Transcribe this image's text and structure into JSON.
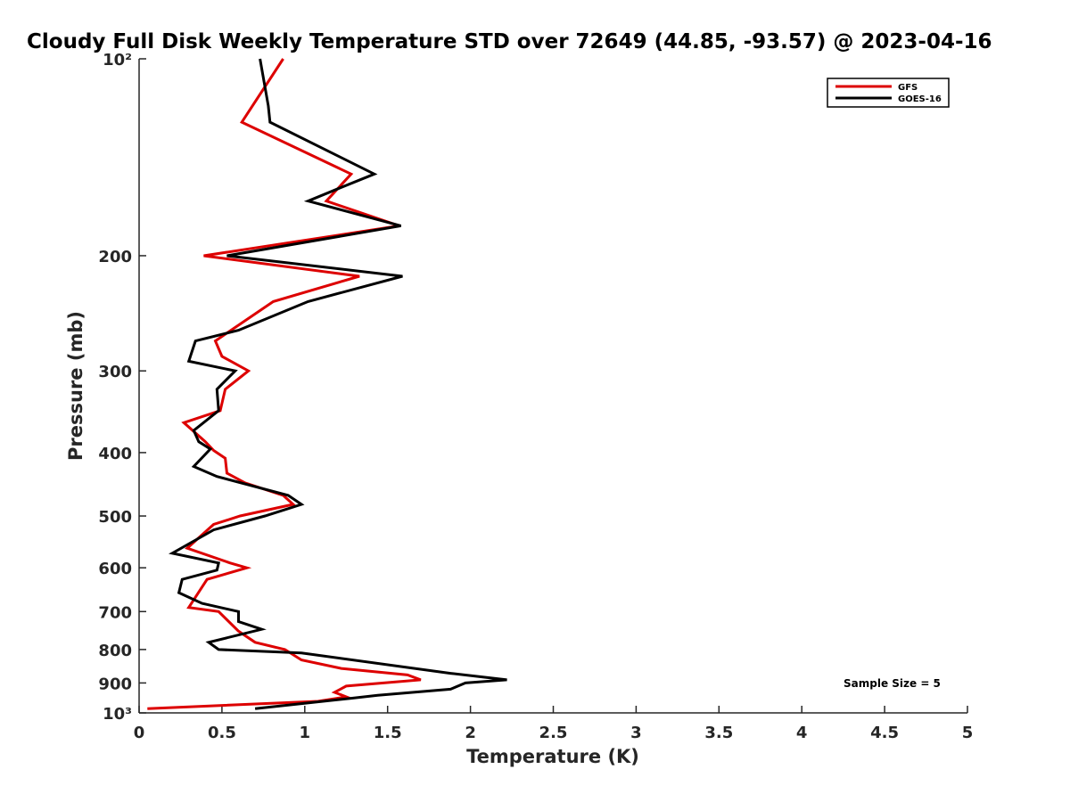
{
  "chart_data": {
    "type": "line",
    "title": "Cloudy Full Disk Weekly Temperature STD over 72649 (44.85, -93.57) @ 2023-04-16",
    "xlabel": "Temperature (K)",
    "ylabel": "Pressure (mb)",
    "xlim": [
      0,
      5
    ],
    "ylim": [
      100,
      1000
    ],
    "y_scale": "log",
    "y_reversed": true,
    "x_ticks": [
      0,
      0.5,
      1,
      1.5,
      2,
      2.5,
      3,
      3.5,
      4,
      4.5,
      5
    ],
    "x_tick_labels": [
      "0",
      "0.5",
      "1",
      "1.5",
      "2",
      "2.5",
      "3",
      "3.5",
      "4",
      "4.5",
      "5"
    ],
    "y_ticks": [
      100,
      200,
      300,
      400,
      500,
      600,
      700,
      800,
      900,
      1000
    ],
    "y_tick_labels": [
      "10²",
      "200",
      "300",
      "400",
      "500",
      "600",
      "700",
      "800",
      "900",
      "10³"
    ],
    "grid": false,
    "legend_position": "top-right",
    "annotation": "Sample Size = 5",
    "series": [
      {
        "name": "GFS",
        "color": "#dd0000",
        "points": [
          {
            "x": 0.87,
            "y": 100
          },
          {
            "x": 0.62,
            "y": 125
          },
          {
            "x": 1.28,
            "y": 150
          },
          {
            "x": 1.13,
            "y": 165
          },
          {
            "x": 1.57,
            "y": 180
          },
          {
            "x": 0.39,
            "y": 200
          },
          {
            "x": 1.33,
            "y": 215
          },
          {
            "x": 0.81,
            "y": 235
          },
          {
            "x": 0.46,
            "y": 270
          },
          {
            "x": 0.5,
            "y": 285
          },
          {
            "x": 0.66,
            "y": 300
          },
          {
            "x": 0.52,
            "y": 320
          },
          {
            "x": 0.49,
            "y": 345
          },
          {
            "x": 0.27,
            "y": 360
          },
          {
            "x": 0.4,
            "y": 385
          },
          {
            "x": 0.45,
            "y": 397
          },
          {
            "x": 0.52,
            "y": 408
          },
          {
            "x": 0.53,
            "y": 430
          },
          {
            "x": 0.64,
            "y": 445
          },
          {
            "x": 0.87,
            "y": 465
          },
          {
            "x": 0.93,
            "y": 480
          },
          {
            "x": 0.61,
            "y": 500
          },
          {
            "x": 0.45,
            "y": 515
          },
          {
            "x": 0.29,
            "y": 560
          },
          {
            "x": 0.55,
            "y": 590
          },
          {
            "x": 0.65,
            "y": 600
          },
          {
            "x": 0.41,
            "y": 625
          },
          {
            "x": 0.3,
            "y": 690
          },
          {
            "x": 0.48,
            "y": 700
          },
          {
            "x": 0.6,
            "y": 750
          },
          {
            "x": 0.7,
            "y": 780
          },
          {
            "x": 0.88,
            "y": 800
          },
          {
            "x": 0.98,
            "y": 830
          },
          {
            "x": 1.22,
            "y": 855
          },
          {
            "x": 1.62,
            "y": 875
          },
          {
            "x": 1.7,
            "y": 890
          },
          {
            "x": 1.25,
            "y": 910
          },
          {
            "x": 1.18,
            "y": 930
          },
          {
            "x": 1.25,
            "y": 945
          },
          {
            "x": 1.08,
            "y": 960
          },
          {
            "x": 0.05,
            "y": 985
          }
        ]
      },
      {
        "name": "GOES-16",
        "color": "#000000",
        "points": [
          {
            "x": 0.73,
            "y": 100
          },
          {
            "x": 0.78,
            "y": 118
          },
          {
            "x": 0.79,
            "y": 125
          },
          {
            "x": 1.42,
            "y": 150
          },
          {
            "x": 1.2,
            "y": 158
          },
          {
            "x": 1.02,
            "y": 165
          },
          {
            "x": 1.58,
            "y": 180
          },
          {
            "x": 0.53,
            "y": 200
          },
          {
            "x": 1.59,
            "y": 215
          },
          {
            "x": 1.02,
            "y": 235
          },
          {
            "x": 0.6,
            "y": 260
          },
          {
            "x": 0.34,
            "y": 270
          },
          {
            "x": 0.3,
            "y": 290
          },
          {
            "x": 0.58,
            "y": 300
          },
          {
            "x": 0.47,
            "y": 320
          },
          {
            "x": 0.48,
            "y": 345
          },
          {
            "x": 0.33,
            "y": 370
          },
          {
            "x": 0.36,
            "y": 385
          },
          {
            "x": 0.43,
            "y": 395
          },
          {
            "x": 0.33,
            "y": 420
          },
          {
            "x": 0.47,
            "y": 435
          },
          {
            "x": 0.9,
            "y": 465
          },
          {
            "x": 0.98,
            "y": 480
          },
          {
            "x": 0.76,
            "y": 500
          },
          {
            "x": 0.45,
            "y": 525
          },
          {
            "x": 0.2,
            "y": 570
          },
          {
            "x": 0.48,
            "y": 590
          },
          {
            "x": 0.47,
            "y": 605
          },
          {
            "x": 0.26,
            "y": 625
          },
          {
            "x": 0.24,
            "y": 655
          },
          {
            "x": 0.38,
            "y": 680
          },
          {
            "x": 0.6,
            "y": 700
          },
          {
            "x": 0.6,
            "y": 725
          },
          {
            "x": 0.74,
            "y": 745
          },
          {
            "x": 0.42,
            "y": 780
          },
          {
            "x": 0.48,
            "y": 800
          },
          {
            "x": 0.98,
            "y": 810
          },
          {
            "x": 1.88,
            "y": 870
          },
          {
            "x": 2.22,
            "y": 890
          },
          {
            "x": 1.97,
            "y": 900
          },
          {
            "x": 1.88,
            "y": 920
          },
          {
            "x": 1.44,
            "y": 940
          },
          {
            "x": 1.28,
            "y": 950
          },
          {
            "x": 0.7,
            "y": 985
          }
        ]
      }
    ]
  }
}
